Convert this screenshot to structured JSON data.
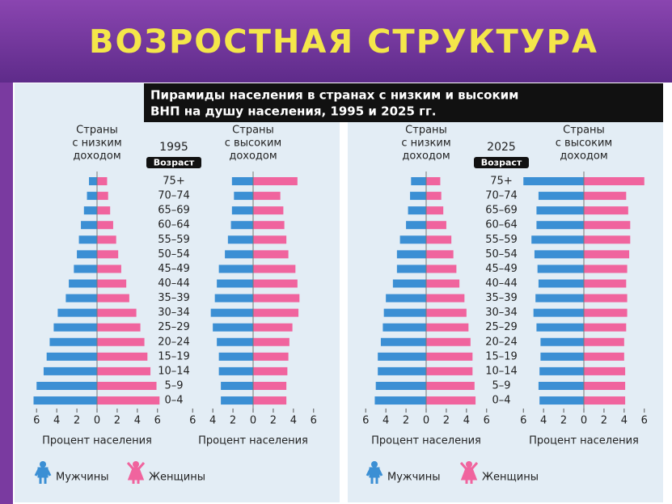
{
  "header": {
    "title": "ВОЗРОСТНАЯ СТРУКТУРА"
  },
  "figure": {
    "caption_lines": [
      "Пирамиды населения в странах с низким и высоким",
      "ВНП на душу населения, 1995 и 2025 гг."
    ]
  },
  "chart_data": [
    {
      "type": "pyramid",
      "title_lines": [
        "Страны",
        "с низким",
        "доходом"
      ],
      "subtitle": "1995",
      "y_label": "Возраст",
      "categories": [
        "75+",
        "70–74",
        "65–69",
        "60–64",
        "55–59",
        "50–54",
        "45–49",
        "40–44",
        "35–39",
        "30–34",
        "25–29",
        "20–24",
        "15–19",
        "10–14",
        "5–9",
        "0–4"
      ],
      "xlabel": "Процент населения",
      "xlim": [
        -6.5,
        6.5
      ],
      "xticks": [
        {
          "value": -6,
          "label": "6"
        },
        {
          "value": -4,
          "label": "4"
        },
        {
          "value": -2,
          "label": "2"
        },
        0,
        2,
        4,
        6
      ],
      "series": [
        {
          "name": "Мужчины",
          "color": "#3b8fd4",
          "values": [
            0.8,
            1.0,
            1.3,
            1.6,
            1.8,
            2.0,
            2.3,
            2.8,
            3.1,
            3.9,
            4.3,
            4.7,
            5.0,
            5.3,
            6.0,
            6.3
          ]
        },
        {
          "name": "Женщины",
          "color": "#f0649e",
          "values": [
            1.0,
            1.1,
            1.3,
            1.6,
            1.9,
            2.1,
            2.4,
            2.9,
            3.2,
            3.9,
            4.3,
            4.7,
            5.0,
            5.3,
            5.9,
            6.2
          ]
        }
      ]
    },
    {
      "type": "pyramid",
      "title_lines": [
        "Страны",
        "с высоким",
        "доходом"
      ],
      "xlabel": "Процент населения",
      "xlim": [
        -6.5,
        6.5
      ],
      "xticks": [
        {
          "value": -6,
          "label": "6"
        },
        {
          "value": -4,
          "label": "4"
        },
        {
          "value": -2,
          "label": "2"
        },
        0,
        2,
        4,
        6
      ],
      "series": [
        {
          "color": "#3b8fd4",
          "values": [
            2.1,
            1.9,
            2.1,
            2.2,
            2.5,
            2.8,
            3.4,
            3.6,
            3.8,
            4.2,
            4.0,
            3.6,
            3.4,
            3.4,
            3.2,
            3.2
          ]
        },
        {
          "color": "#f0649e",
          "values": [
            4.4,
            2.7,
            3.0,
            3.1,
            3.3,
            3.5,
            4.2,
            4.4,
            4.6,
            4.5,
            3.9,
            3.6,
            3.5,
            3.4,
            3.3,
            3.3
          ]
        }
      ]
    },
    {
      "type": "pyramid",
      "title_lines": [
        "Страны",
        "с низким",
        "доходом"
      ],
      "subtitle": "2025",
      "y_label": "Возраст",
      "categories": [
        "75+",
        "70–74",
        "65–69",
        "60–64",
        "55–59",
        "50–54",
        "45–49",
        "40–44",
        "35–39",
        "30–34",
        "25–29",
        "20–24",
        "15–19",
        "10–14",
        "5–9",
        "0–4"
      ],
      "xlabel": "Процент населения",
      "xlim": [
        -6.5,
        6.5
      ],
      "xticks": [
        {
          "value": -6,
          "label": "6"
        },
        {
          "value": -4,
          "label": "4"
        },
        {
          "value": -2,
          "label": "2"
        },
        0,
        2,
        4,
        6
      ],
      "series": [
        {
          "name": "Мужчины",
          "color": "#3b8fd4",
          "values": [
            1.5,
            1.6,
            1.8,
            2.0,
            2.6,
            2.9,
            2.9,
            3.3,
            4.0,
            4.2,
            4.3,
            4.5,
            4.8,
            4.8,
            5.0,
            5.1
          ]
        },
        {
          "name": "Женщины",
          "color": "#f0649e",
          "values": [
            1.4,
            1.5,
            1.7,
            2.0,
            2.5,
            2.7,
            3.0,
            3.3,
            3.8,
            4.0,
            4.2,
            4.4,
            4.6,
            4.6,
            4.8,
            4.9
          ]
        }
      ]
    },
    {
      "type": "pyramid",
      "title_lines": [
        "Страны",
        "с высоким",
        "доходом"
      ],
      "xlabel": "Процент населения",
      "xlim": [
        -6.5,
        6.5
      ],
      "xticks": [
        {
          "value": -6,
          "label": "6"
        },
        {
          "value": -4,
          "label": "4"
        },
        {
          "value": -2,
          "label": "2"
        },
        0,
        2,
        4,
        6
      ],
      "series": [
        {
          "color": "#3b8fd4",
          "values": [
            6.0,
            4.5,
            4.7,
            4.7,
            5.2,
            4.9,
            4.6,
            4.5,
            4.8,
            5.0,
            4.7,
            4.3,
            4.3,
            4.4,
            4.5,
            4.4
          ]
        },
        {
          "color": "#f0649e",
          "values": [
            6.0,
            4.2,
            4.4,
            4.6,
            4.6,
            4.5,
            4.3,
            4.2,
            4.3,
            4.3,
            4.2,
            4.0,
            4.0,
            4.1,
            4.1,
            4.1
          ]
        }
      ]
    }
  ]
}
